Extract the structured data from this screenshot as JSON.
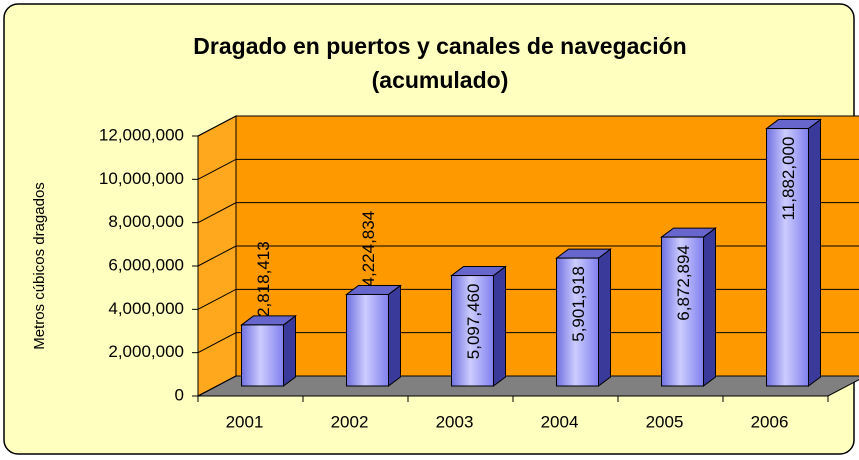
{
  "chart_data": {
    "type": "bar3d",
    "title": [
      "Dragado en puertos y canales de navegación",
      "(acumulado)"
    ],
    "y_label": "Metros cúbicos dragados",
    "categories": [
      "2001",
      "2002",
      "2003",
      "2004",
      "2005",
      "2006"
    ],
    "values": [
      2818413,
      4224834,
      5097460,
      5901918,
      6872894,
      11882000
    ],
    "value_labels": [
      "2,818,413",
      "4,224,834",
      "5,097,460",
      "5,901,918",
      "6,872,894",
      "11,882,000"
    ],
    "color": "#9999ff",
    "wall_color": "#ff9900",
    "floor_color": "#808080",
    "ylim": [
      0,
      12000000
    ],
    "yticks": [
      {
        "value": 0,
        "label": "0"
      },
      {
        "value": 2000000,
        "label": "2,000,000"
      },
      {
        "value": 4000000,
        "label": "4,000,000"
      },
      {
        "value": 6000000,
        "label": "6,000,000"
      },
      {
        "value": 8000000,
        "label": "8,000,000"
      },
      {
        "value": 10000000,
        "label": "10,000,000"
      },
      {
        "value": 12000000,
        "label": "12,000,000"
      }
    ],
    "grid": true
  }
}
